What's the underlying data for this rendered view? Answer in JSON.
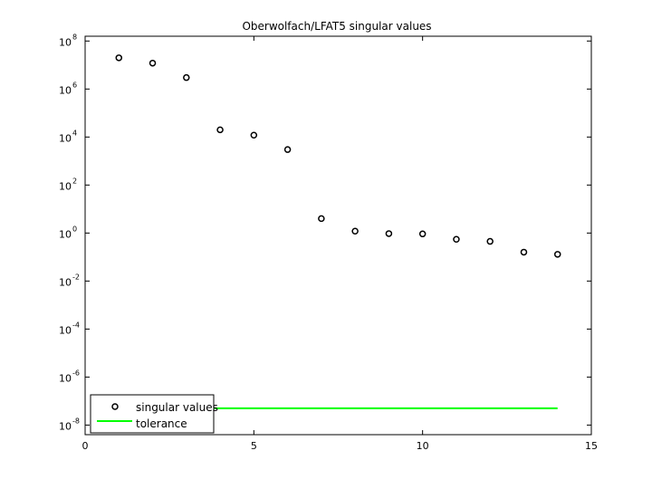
{
  "chart_data": {
    "type": "scatter",
    "title": "Oberwolfach/LFAT5 singular values",
    "xlabel": "",
    "ylabel": "",
    "xlim": [
      0,
      15
    ],
    "ylim_exponent": [
      -8.4,
      8.2
    ],
    "y_scale": "log",
    "x_ticks": [
      "0",
      "5",
      "10",
      "15"
    ],
    "x_tick_values": [
      0,
      5,
      10,
      15
    ],
    "y_ticks": [
      {
        "base": "10",
        "exp": "8",
        "value": 8
      },
      {
        "base": "10",
        "exp": "6",
        "value": 6
      },
      {
        "base": "10",
        "exp": "4",
        "value": 4
      },
      {
        "base": "10",
        "exp": "2",
        "value": 2
      },
      {
        "base": "10",
        "exp": "0",
        "value": 0
      },
      {
        "base": "10",
        "exp": "-2",
        "value": -2
      },
      {
        "base": "10",
        "exp": "-4",
        "value": -4
      },
      {
        "base": "10",
        "exp": "-6",
        "value": -6
      },
      {
        "base": "10",
        "exp": "-8",
        "value": -8
      }
    ],
    "series": [
      {
        "name": "singular values",
        "marker": "circle",
        "color": "#000000",
        "x": [
          1,
          2,
          3,
          4,
          5,
          6,
          7,
          8,
          9,
          10,
          11,
          12,
          13,
          14
        ],
        "y": [
          20000000,
          12000000,
          3000000,
          20000,
          12000,
          3000,
          4,
          1.2,
          0.95,
          0.92,
          0.55,
          0.45,
          0.16,
          0.13
        ]
      },
      {
        "name": "tolerance",
        "marker": "line",
        "color": "#00ff00",
        "x": [
          1,
          14
        ],
        "y": [
          5e-08,
          5e-08
        ]
      }
    ],
    "legend_position": "bottom-left",
    "grid": false
  }
}
